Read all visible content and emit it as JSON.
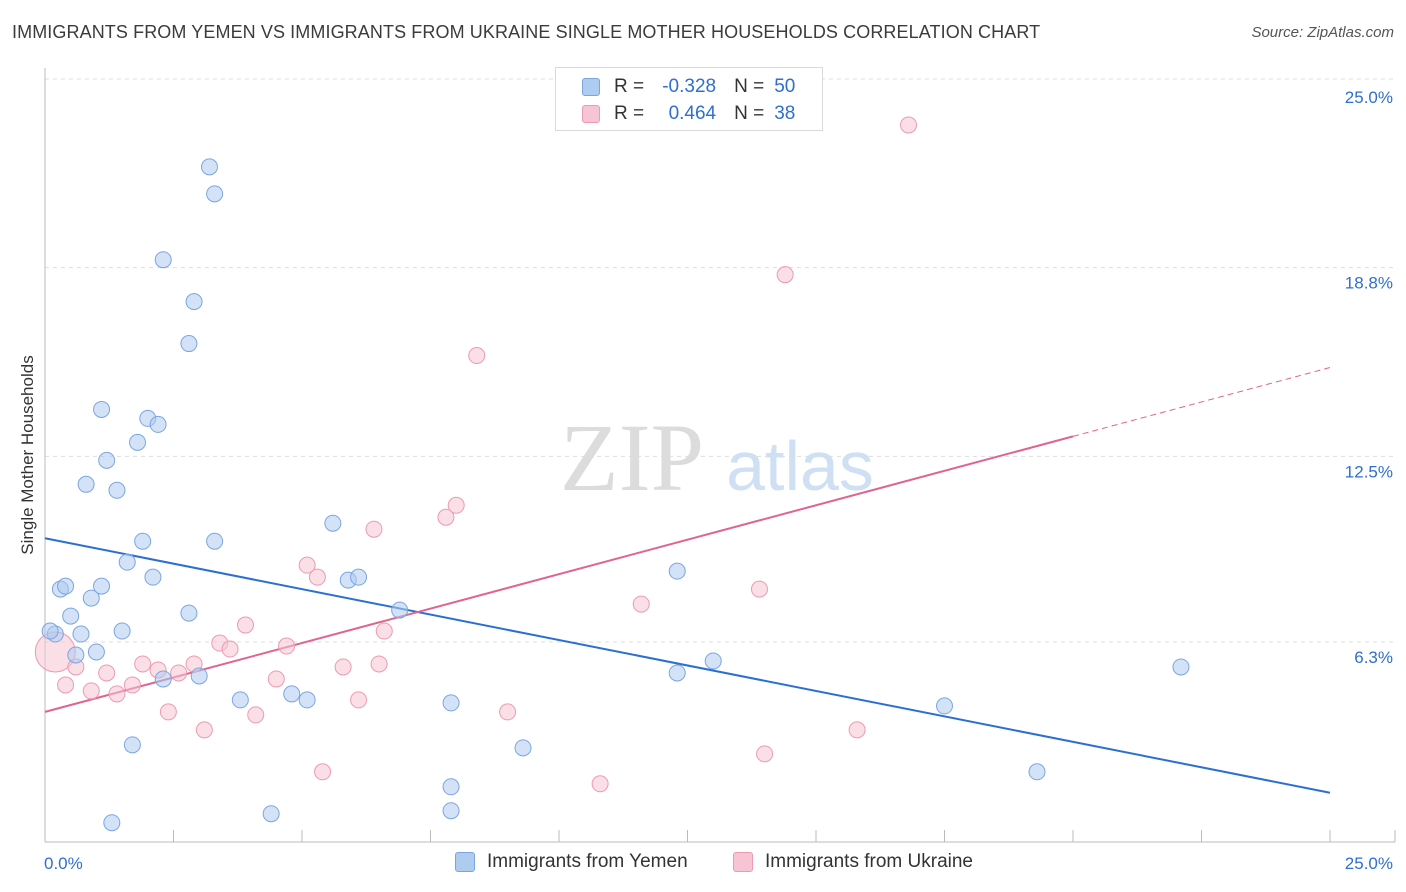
{
  "title": "IMMIGRANTS FROM YEMEN VS IMMIGRANTS FROM UKRAINE SINGLE MOTHER HOUSEHOLDS CORRELATION CHART",
  "source": "Source: ZipAtlas.com",
  "watermark": {
    "zip": "ZIP",
    "atlas": "atlas"
  },
  "legend": {
    "rows": [
      {
        "r_label": "R =",
        "r_value": "-0.328",
        "n_label": "N =",
        "n_value": "50"
      },
      {
        "r_label": "R =",
        "r_value": "0.464",
        "n_label": "N =",
        "n_value": "38"
      }
    ]
  },
  "bottom_legend": {
    "yemen": "Immigrants from Yemen",
    "ukraine": "Immigrants from Ukraine"
  },
  "colors": {
    "yemen_fill": "#aecbf0",
    "yemen_stroke": "#7aa6e0",
    "yemen_line": "#2a6fd1",
    "ukraine_fill": "#f6c4d3",
    "ukraine_stroke": "#ec9ab4",
    "ukraine_line": "#e0648f",
    "tick_label": "#2f6fd0",
    "grid": "#dddddd"
  },
  "chart_data": {
    "type": "scatter",
    "title": "IMMIGRANTS FROM YEMEN VS IMMIGRANTS FROM UKRAINE SINGLE MOTHER HOUSEHOLDS CORRELATION CHART",
    "xlabel": "",
    "ylabel": "Single Mother Households",
    "xlim": [
      0,
      26.3
    ],
    "ylim": [
      -0.5,
      25.8
    ],
    "x_tick_labels": [
      "0.0%",
      "25.0%"
    ],
    "y_ticks": [
      6.3,
      12.5,
      18.8,
      25.0
    ],
    "y_tick_labels": [
      "6.3%",
      "12.5%",
      "18.8%",
      "25.0%"
    ],
    "series": [
      {
        "name": "Immigrants from Yemen",
        "r": -0.328,
        "n": 50,
        "trend": {
          "x": [
            0.0,
            25.0
          ],
          "y": [
            10.2,
            1.7
          ]
        },
        "points": [
          {
            "x": 0.2,
            "y": 7.0
          },
          {
            "x": 0.3,
            "y": 8.5
          },
          {
            "x": 0.4,
            "y": 8.6
          },
          {
            "x": 0.5,
            "y": 7.6
          },
          {
            "x": 0.6,
            "y": 6.3
          },
          {
            "x": 0.7,
            "y": 7.0
          },
          {
            "x": 0.8,
            "y": 12.0
          },
          {
            "x": 0.9,
            "y": 8.2
          },
          {
            "x": 1.0,
            "y": 6.4
          },
          {
            "x": 1.1,
            "y": 14.5
          },
          {
            "x": 1.2,
            "y": 12.8
          },
          {
            "x": 1.4,
            "y": 11.8
          },
          {
            "x": 1.3,
            "y": 0.7
          },
          {
            "x": 1.5,
            "y": 7.1
          },
          {
            "x": 1.6,
            "y": 9.4
          },
          {
            "x": 1.7,
            "y": 3.3
          },
          {
            "x": 1.8,
            "y": 13.4
          },
          {
            "x": 1.9,
            "y": 10.1
          },
          {
            "x": 2.0,
            "y": 14.2
          },
          {
            "x": 2.1,
            "y": 8.9
          },
          {
            "x": 2.2,
            "y": 14.0
          },
          {
            "x": 2.3,
            "y": 5.5
          },
          {
            "x": 2.3,
            "y": 19.5
          },
          {
            "x": 2.8,
            "y": 16.7
          },
          {
            "x": 2.9,
            "y": 18.1
          },
          {
            "x": 2.8,
            "y": 7.7
          },
          {
            "x": 3.2,
            "y": 22.6
          },
          {
            "x": 3.3,
            "y": 21.7
          },
          {
            "x": 3.3,
            "y": 10.1
          },
          {
            "x": 3.8,
            "y": 4.8
          },
          {
            "x": 4.4,
            "y": 1.0
          },
          {
            "x": 4.8,
            "y": 5.0
          },
          {
            "x": 5.1,
            "y": 4.8
          },
          {
            "x": 5.6,
            "y": 10.7
          },
          {
            "x": 5.9,
            "y": 8.8
          },
          {
            "x": 6.1,
            "y": 8.9
          },
          {
            "x": 6.9,
            "y": 7.8
          },
          {
            "x": 7.9,
            "y": 1.9
          },
          {
            "x": 7.9,
            "y": 1.1
          },
          {
            "x": 7.9,
            "y": 4.7
          },
          {
            "x": 9.3,
            "y": 3.2
          },
          {
            "x": 12.3,
            "y": 9.1
          },
          {
            "x": 12.3,
            "y": 5.7
          },
          {
            "x": 13.0,
            "y": 6.1
          },
          {
            "x": 17.5,
            "y": 4.6
          },
          {
            "x": 19.3,
            "y": 2.4
          },
          {
            "x": 22.1,
            "y": 5.9
          },
          {
            "x": 0.1,
            "y": 7.1
          },
          {
            "x": 1.1,
            "y": 8.6
          },
          {
            "x": 3.0,
            "y": 5.6
          }
        ]
      },
      {
        "name": "Immigrants from Ukraine",
        "r": 0.464,
        "n": 38,
        "trend": {
          "x": [
            0.0,
            20.0
          ],
          "y": [
            4.4,
            13.6
          ]
        },
        "trend_dashed": {
          "x": [
            20.0,
            25.0
          ],
          "y": [
            13.6,
            15.9
          ]
        },
        "points": [
          {
            "x": 0.2,
            "y": 6.4,
            "big": true
          },
          {
            "x": 0.4,
            "y": 5.3
          },
          {
            "x": 0.6,
            "y": 5.9
          },
          {
            "x": 0.9,
            "y": 5.1
          },
          {
            "x": 1.2,
            "y": 5.7
          },
          {
            "x": 1.4,
            "y": 5.0
          },
          {
            "x": 1.7,
            "y": 5.3
          },
          {
            "x": 1.9,
            "y": 6.0
          },
          {
            "x": 2.2,
            "y": 5.8
          },
          {
            "x": 2.4,
            "y": 4.4
          },
          {
            "x": 2.6,
            "y": 5.7
          },
          {
            "x": 2.9,
            "y": 6.0
          },
          {
            "x": 3.1,
            "y": 3.8
          },
          {
            "x": 3.4,
            "y": 6.7
          },
          {
            "x": 3.6,
            "y": 6.5
          },
          {
            "x": 3.9,
            "y": 7.3
          },
          {
            "x": 4.1,
            "y": 4.3
          },
          {
            "x": 4.5,
            "y": 5.5
          },
          {
            "x": 4.7,
            "y": 6.6
          },
          {
            "x": 5.1,
            "y": 9.3
          },
          {
            "x": 5.3,
            "y": 8.9
          },
          {
            "x": 5.4,
            "y": 2.4
          },
          {
            "x": 5.8,
            "y": 5.9
          },
          {
            "x": 6.1,
            "y": 4.8
          },
          {
            "x": 6.4,
            "y": 10.5
          },
          {
            "x": 6.5,
            "y": 6.0
          },
          {
            "x": 6.6,
            "y": 7.1
          },
          {
            "x": 7.8,
            "y": 10.9
          },
          {
            "x": 8.0,
            "y": 11.3
          },
          {
            "x": 8.4,
            "y": 16.3
          },
          {
            "x": 9.0,
            "y": 4.4
          },
          {
            "x": 10.8,
            "y": 2.0
          },
          {
            "x": 11.6,
            "y": 8.0
          },
          {
            "x": 13.9,
            "y": 8.5
          },
          {
            "x": 14.0,
            "y": 3.0
          },
          {
            "x": 14.4,
            "y": 19.0
          },
          {
            "x": 15.8,
            "y": 3.8
          },
          {
            "x": 16.8,
            "y": 24.0
          }
        ]
      }
    ]
  }
}
